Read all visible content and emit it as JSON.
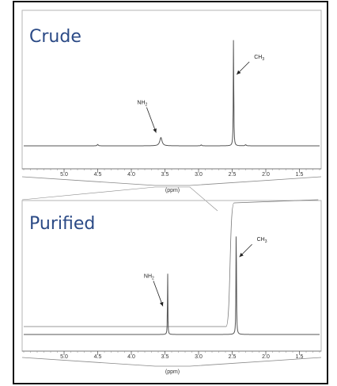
{
  "chart_data": [
    {
      "type": "line",
      "title": "Crude",
      "xlabel": "(ppm)",
      "ylabel": "",
      "xlim": [
        5.6,
        1.2
      ],
      "x_reversed": true,
      "ylim": [
        0,
        1
      ],
      "x_ticks": [
        5.0,
        4.5,
        4.0,
        3.5,
        3.0,
        2.5,
        2.0,
        1.5
      ],
      "x_tick_labels": [
        "5.0",
        "4.5",
        "4.0",
        "3.5",
        "3.0",
        "2.5",
        "2.0",
        "1.5"
      ],
      "grid": false,
      "peaks": [
        {
          "x": 4.5,
          "height": 0.012,
          "width": 0.02
        },
        {
          "x": 3.56,
          "height": 0.075,
          "width": 0.04
        },
        {
          "x": 2.96,
          "height": 0.008,
          "width": 0.02
        },
        {
          "x": 2.48,
          "height": 1.0,
          "width": 0.008
        },
        {
          "x": 2.3,
          "height": 0.01,
          "width": 0.02
        }
      ],
      "annotations": [
        {
          "label": "NH",
          "subscript": "2",
          "x": 3.56,
          "y": 0.075
        },
        {
          "label": "CH",
          "subscript": "3",
          "x": 2.48,
          "y": 0.6
        }
      ]
    },
    {
      "type": "line",
      "title": "Purified",
      "xlabel": "(ppm)",
      "ylabel": "",
      "xlim": [
        5.6,
        1.2
      ],
      "x_reversed": true,
      "ylim": [
        0,
        1
      ],
      "x_ticks": [
        5.0,
        4.5,
        4.0,
        3.5,
        3.0,
        2.5,
        2.0,
        1.5
      ],
      "x_tick_labels": [
        "5.0",
        "4.5",
        "4.0",
        "3.5",
        "3.0",
        "2.5",
        "2.0",
        "1.5"
      ],
      "grid": false,
      "peaks": [
        {
          "x": 3.46,
          "height": 0.62,
          "width": 0.006
        },
        {
          "x": 2.44,
          "height": 1.0,
          "width": 0.008
        }
      ],
      "integral": {
        "x_start": 2.52,
        "x_end": 1.22
      },
      "annotations": [
        {
          "label": "NH",
          "subscript": "2",
          "x": 3.46,
          "y": 0.2
        },
        {
          "label": "CH",
          "subscript": "3",
          "x": 2.44,
          "y": 0.62
        }
      ]
    }
  ]
}
